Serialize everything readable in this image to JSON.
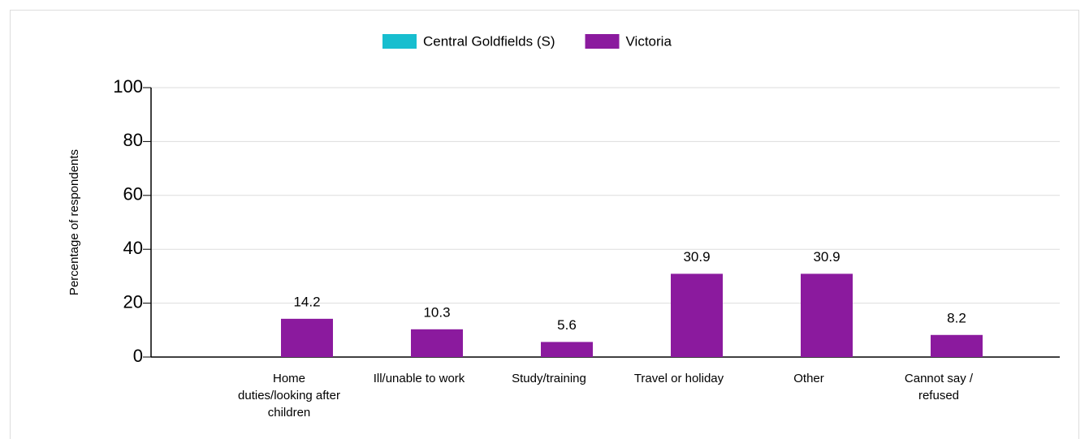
{
  "chart_data": {
    "type": "bar",
    "y_label": "Percentage of respondents",
    "categories": [
      "Home duties/looking after children",
      "Ill/unable to work",
      "Study/training",
      "Travel or holiday",
      "Other",
      "Cannot say / refused"
    ],
    "series": [
      {
        "name": "Central Goldfields (S)",
        "color": "#17becf",
        "values": [
          null,
          null,
          null,
          null,
          null,
          null
        ]
      },
      {
        "name": "Victoria",
        "color": "#8b1a9e",
        "values": [
          14.2,
          10.3,
          5.6,
          30.9,
          30.9,
          8.2
        ]
      }
    ],
    "ylim": [
      0,
      100
    ],
    "yticks": [
      0,
      20,
      40,
      60,
      80,
      100
    ],
    "grid": true,
    "legend": "top"
  }
}
